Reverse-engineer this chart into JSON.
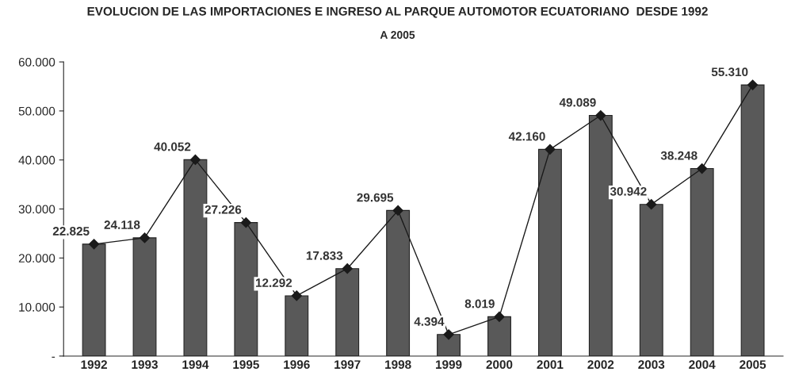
{
  "chart_data": {
    "type": "bar",
    "title": "EVOLUCION DE LAS IMPORTACIONES E INGRESO AL PARQUE AUTOMOTOR ECUATORIANO  DESDE 1992",
    "subtitle": "A 2005",
    "categories": [
      "1992",
      "1993",
      "1994",
      "1995",
      "1996",
      "1997",
      "1998",
      "1999",
      "2000",
      "2001",
      "2002",
      "2003",
      "2004",
      "2005"
    ],
    "series": [
      {
        "color": "#595959",
        "values": [
          22825,
          24118,
          40052,
          27226,
          12292,
          17833,
          29695,
          4394,
          8019,
          42160,
          49089,
          30942,
          38248,
          55310
        ]
      },
      {
        "type": "line",
        "color": "#1a1a1a",
        "marker": "diamond",
        "line_style": "solid",
        "values": [
          22825,
          24118,
          40052,
          27226,
          12292,
          17833,
          29695,
          4394,
          8019,
          42160,
          49089,
          30942,
          38248,
          55310
        ],
        "value_labels": [
          "22.825",
          "24.118",
          "40.052",
          "27.226",
          "12.292",
          "17.833",
          "29.695",
          "4.394",
          "8.019",
          "42.160",
          "49.089",
          "30.942",
          "38.248",
          "55.310"
        ]
      }
    ],
    "ylim": [
      0,
      60000
    ],
    "yticks": [
      {
        "value": 0,
        "label": "-"
      },
      {
        "value": 10000,
        "label": "10.000"
      },
      {
        "value": 20000,
        "label": "20.000"
      },
      {
        "value": 30000,
        "label": "30.000"
      },
      {
        "value": 40000,
        "label": "40.000"
      },
      {
        "value": 50000,
        "label": "50.000"
      },
      {
        "value": 60000,
        "label": "60.000"
      }
    ],
    "grid": false,
    "legend": false
  }
}
